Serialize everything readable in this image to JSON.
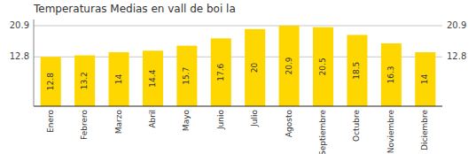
{
  "chart_data": {
    "type": "bar",
    "title": "Temperaturas Medias en vall de boi la",
    "categories": [
      "Enero",
      "Febrero",
      "Marzo",
      "Abril",
      "Mayo",
      "Junio",
      "Julio",
      "Agosto",
      "Septiembre",
      "Octubre",
      "Noviembre",
      "Diciembre"
    ],
    "values": [
      12.8,
      13.2,
      14.0,
      14.4,
      15.7,
      17.6,
      20.0,
      20.9,
      20.5,
      18.5,
      16.3,
      14.0
    ],
    "color": "#FFD700",
    "ylim": [
      0,
      22.5
    ],
    "yticks": [
      20.9,
      12.8
    ],
    "grid": true,
    "data_labels": true
  }
}
